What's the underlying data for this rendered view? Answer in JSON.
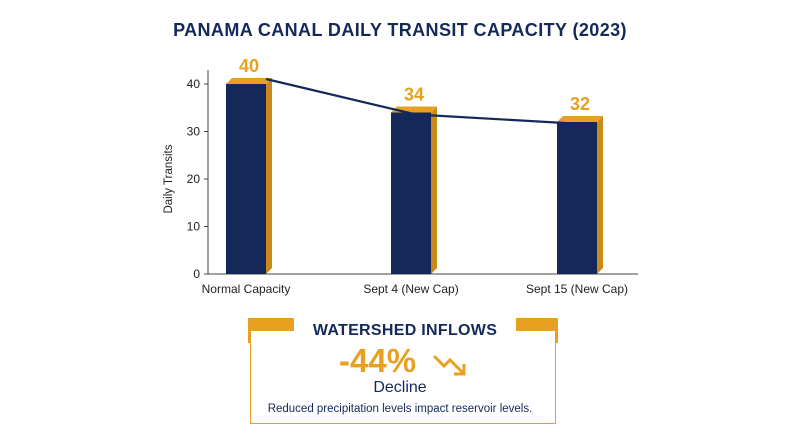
{
  "chart_data": {
    "type": "bar",
    "title": "PANAMA CANAL DAILY TRANSIT CAPACITY (2023)",
    "xlabel": "",
    "ylabel": "Daily Transits",
    "ylim": [
      0,
      40
    ],
    "yticks": [
      0,
      10,
      20,
      30,
      40
    ],
    "categories": [
      "Normal Capacity",
      "Sept 4 (New Cap)",
      "Sept 15 (New Cap)"
    ],
    "values": [
      40,
      34,
      32
    ],
    "data_labels": [
      "40",
      "34",
      "32"
    ],
    "trend_line": true,
    "grid": false,
    "legend": "none"
  },
  "callout": {
    "heading": "WATERSHED INFLOWS",
    "value": "-44%",
    "value_label": "Decline",
    "caption": "Reduced precipitation levels impact reservoir levels.",
    "icon": "trend-down-arrow-icon"
  },
  "colors": {
    "navy": "#14295a",
    "orange": "#e8a020",
    "orange_dark": "#c98a18"
  }
}
